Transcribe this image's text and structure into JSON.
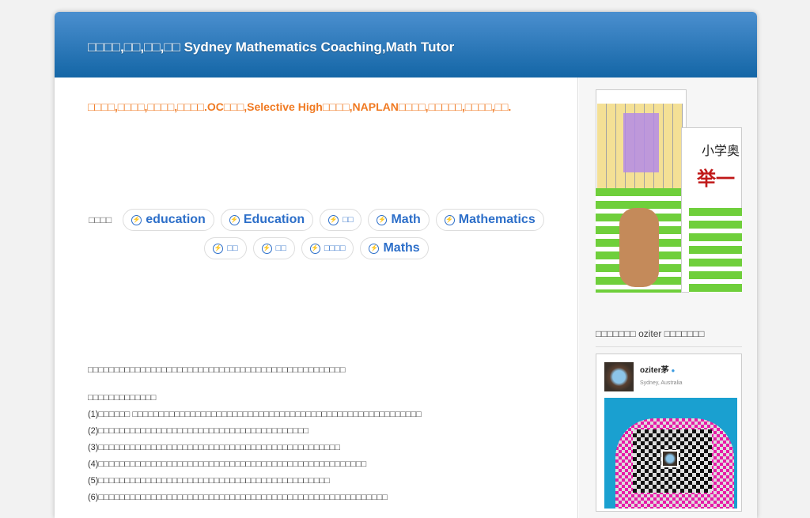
{
  "header": {
    "title": "□□□□,□□,□□,□□ Sydney Mathematics Coaching,Math Tutor"
  },
  "main": {
    "tagline": "□□□□,□□□□,□□□□,□□□□.OC□□□,Selective High□□□□,NAPLAN□□□□,□□□□□,□□□□,□□.",
    "tags_label": "□□□□",
    "tags": [
      "education",
      "Education",
      "□□",
      "Math",
      "Mathematics",
      "□□",
      "□□",
      "□□□□",
      "Maths"
    ],
    "intro": "□□□□□□□□□□□□□□□□□□□□□□□□□□□□□□□□□□□□□□□□□□□□□□□□□",
    "list_title": "□□□□□□□□□□□□□",
    "list": [
      "(1)□□□□□□ □□□□□□□□□□□□□□□□□□□□□□□□□□□□□□□□□□□□□□□□□□□□□□□□□□□□□□□",
      "(2)□□□□□□□□□□□□□□□□□□□□□□□□□□□□□□□□□□□□□□□□",
      "(3)□□□□□□□□□□□□□□□□□□□□□□□□□□□□□□□□□□□□□□□□□□□□□□",
      "(4)□□□□□□□□□□□□□□□□□□□□□□□□□□□□□□□□□□□□□□□□□□□□□□□□□□□",
      "(5)□□□□□□□□□□□□□□□□□□□□□□□□□□□□□□□□□□□□□□□□□□□□",
      "(6)□□□□□□□□□□□□□□□□□□□□□□□□□□□□□□□□□□□□□□□□□□□□□□□□□□□□□□□"
    ]
  },
  "sidebar": {
    "book": {
      "title_1": "小学奥",
      "title_2": "举一"
    },
    "weibo_title": "□□□□□□□ oziter □□□□□□□",
    "profile": {
      "name": "oziter茅",
      "location": "Sydney, Australia"
    }
  }
}
